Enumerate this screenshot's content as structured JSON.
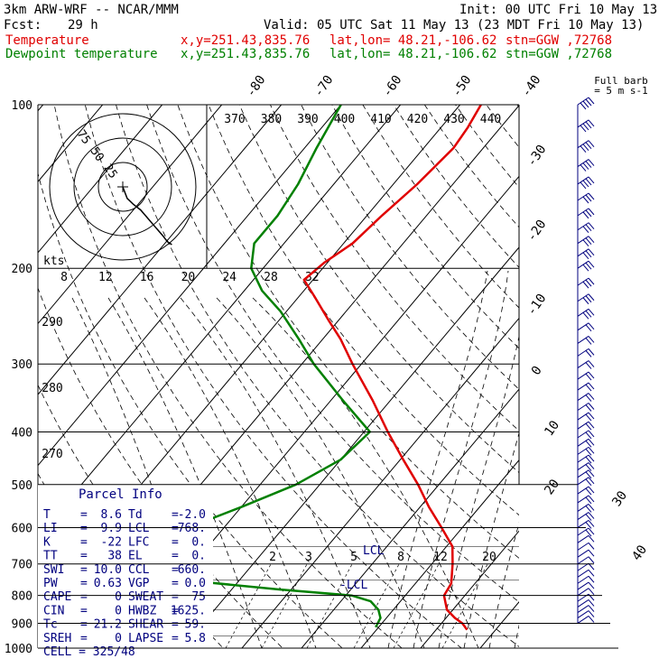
{
  "header": {
    "model": "3km ARW-WRF -- NCAR/MMM",
    "init": "Init: 00 UTC Fri 10 May 13",
    "fcst_label": "Fcst:",
    "fcst_value": "29 h",
    "valid": "Valid: 05 UTC Sat 11 May 13 (23 MDT Fri 10 May 13)",
    "temp_label": "Temperature",
    "dew_label": "Dewpoint temperature",
    "xy": "x,y=251.43,835.76",
    "latlon": "lat,lon= 48.21,-106.62",
    "stn": "stn=GGW ,72768"
  },
  "colors": {
    "temperature": "#e00000",
    "dewpoint": "#008000",
    "wind": "#00007f",
    "isotherm": "#000000"
  },
  "chart_data": {
    "type": "line",
    "subtype": "skew-T log-P sounding",
    "pressure_ticks": [
      "100",
      "200",
      "300",
      "400",
      "500",
      "600",
      "700",
      "800",
      "900",
      "1000"
    ],
    "skewed_temp_labels": [
      "-80",
      "-70",
      "-60",
      "-50",
      "-40",
      "-30",
      "-20",
      "-10",
      "0",
      "10",
      "20",
      "30",
      "40"
    ],
    "theta_labels": [
      "370",
      "380",
      "390",
      "400",
      "410",
      "420",
      "430",
      "440"
    ],
    "theta_left_labels": [
      "290",
      "280",
      "270"
    ],
    "mixing_ratio_labels": [
      "2",
      "3",
      "5",
      "8",
      "12",
      "20"
    ],
    "hodograph": {
      "unit": "kts",
      "ring_labels": [
        "25",
        "50",
        "75"
      ],
      "x_labels": [
        "8",
        "12",
        "16",
        "20",
        "24",
        "28",
        "32"
      ]
    },
    "lcl_label": "LCL",
    "lcl_label2": "-LCL",
    "wind_header": [
      "Full barb",
      "= 5 m s-1"
    ],
    "series": [
      {
        "name": "Temperature",
        "p": [
          925,
          900,
          880,
          850,
          800,
          760,
          700,
          650,
          600,
          550,
          500,
          450,
          400,
          350,
          300,
          270,
          250,
          225,
          210,
          195,
          180,
          160,
          140,
          120,
          110,
          100
        ],
        "t": [
          15.2,
          13.5,
          11.5,
          9.0,
          6.5,
          6.0,
          3.5,
          1.0,
          -3.5,
          -8.5,
          -13.5,
          -19.5,
          -26.0,
          -33.0,
          -41.5,
          -47.0,
          -51.5,
          -57.5,
          -61.5,
          -60.5,
          -58.5,
          -57.5,
          -56.0,
          -55.0,
          -55.5,
          -56.5
        ]
      },
      {
        "name": "Dewpoint temperature",
        "p": [
          915,
          880,
          850,
          820,
          800,
          780,
          740,
          700,
          650,
          600,
          550,
          500,
          450,
          400,
          350,
          300,
          270,
          240,
          220,
          200,
          180,
          160,
          140,
          120,
          100
        ],
        "t": [
          -0.5,
          -1.0,
          -2.5,
          -5.0,
          -9.0,
          -22.0,
          -45.0,
          -55.0,
          -50.0,
          -46.0,
          -40.0,
          -34.0,
          -30.0,
          -29.0,
          -38.0,
          -48.0,
          -54.0,
          -61.0,
          -67.0,
          -72.0,
          -75.0,
          -75.0,
          -76.0,
          -78.0,
          -80.0
        ]
      }
    ],
    "hodograph_trace": [
      [
        0,
        0
      ],
      [
        3,
        -8
      ],
      [
        7,
        -12
      ],
      [
        12,
        -16
      ],
      [
        17,
        -22
      ],
      [
        22,
        -28
      ],
      [
        27,
        -34
      ],
      [
        30,
        -38
      ],
      [
        33,
        -40
      ]
    ],
    "wind_barbs_p": [
      100,
      110,
      120,
      130,
      140,
      150,
      160,
      170,
      180,
      190,
      200,
      215,
      230,
      245,
      260,
      275,
      290,
      305,
      320,
      335,
      350,
      365,
      380,
      395,
      410,
      425,
      440,
      455,
      470,
      485,
      500,
      520,
      540,
      560,
      580,
      600,
      620,
      640,
      660,
      680,
      700,
      720,
      740,
      760,
      780,
      800,
      820,
      840,
      860,
      880,
      900
    ],
    "wind_barb_speed": [
      [
        40,
        0,
        0
      ],
      [
        40,
        0,
        0
      ],
      [
        40,
        0,
        0
      ],
      [
        35,
        0,
        0
      ],
      [
        35,
        0,
        0
      ],
      [
        30,
        0,
        0
      ],
      [
        30,
        0,
        0
      ],
      [
        30,
        0,
        0
      ],
      [
        25,
        0,
        0
      ],
      [
        25,
        0,
        0
      ],
      [
        25,
        0,
        0
      ],
      [
        25,
        0,
        0
      ],
      [
        25,
        0,
        0
      ],
      [
        25,
        0,
        0
      ],
      [
        20,
        0,
        0
      ],
      [
        20,
        0,
        0
      ],
      [
        20,
        0,
        0
      ],
      [
        20,
        0,
        0
      ],
      [
        20,
        0,
        0
      ],
      [
        20,
        0,
        0
      ],
      [
        20,
        0,
        0
      ],
      [
        20,
        0,
        0
      ],
      [
        15,
        0,
        0
      ],
      [
        15,
        0,
        0
      ],
      [
        15,
        0,
        0
      ],
      [
        15,
        0,
        0
      ],
      [
        15,
        0,
        0
      ],
      [
        15,
        0,
        0
      ],
      [
        15,
        0,
        0
      ],
      [
        15,
        0,
        0
      ],
      [
        15,
        0,
        0
      ],
      [
        15,
        0,
        0
      ],
      [
        15,
        0,
        0
      ],
      [
        15,
        0,
        0
      ],
      [
        15,
        0,
        0
      ],
      [
        15,
        0,
        0
      ],
      [
        15,
        0,
        0
      ],
      [
        10,
        0,
        0
      ],
      [
        10,
        0,
        0
      ],
      [
        10,
        0,
        0
      ],
      [
        10,
        0,
        0
      ],
      [
        10,
        0,
        0
      ],
      [
        10,
        0,
        0
      ],
      [
        10,
        0,
        0
      ],
      [
        5,
        0,
        0
      ],
      [
        5,
        0,
        0
      ],
      [
        5,
        0,
        0
      ],
      [
        5,
        0,
        0
      ],
      [
        5,
        0,
        0
      ],
      [
        5,
        0,
        0
      ],
      [
        5,
        0,
        0
      ]
    ]
  },
  "parcel_info": {
    "title": "Parcel Info",
    "rows": [
      [
        "T",
        "=",
        "8.6",
        "Td",
        "=",
        "-2.0"
      ],
      [
        "LI",
        "=",
        "9.9",
        "LCL",
        "=",
        "768."
      ],
      [
        "K",
        "=",
        "-22",
        "LFC",
        "=",
        "0."
      ],
      [
        "TT",
        "=",
        "38",
        "EL",
        "=",
        "0."
      ],
      [
        "SWI",
        "=",
        "10.0",
        "CCL",
        "=",
        "660."
      ],
      [
        "PW",
        "=",
        "0.63",
        "VGP",
        "=",
        "0.0"
      ],
      [
        "CAPE",
        "=",
        "0",
        "SWEAT",
        "=",
        "75"
      ],
      [
        "CIN",
        "=",
        "0",
        "HWBZ",
        "=",
        "1625."
      ],
      [
        "Tc",
        "=",
        "21.2",
        "SHEAR",
        "=",
        "59."
      ],
      [
        "SREH",
        "=",
        "0",
        "LAPSE",
        "=",
        "5.8"
      ]
    ],
    "cell": "CELL = 325/48"
  }
}
